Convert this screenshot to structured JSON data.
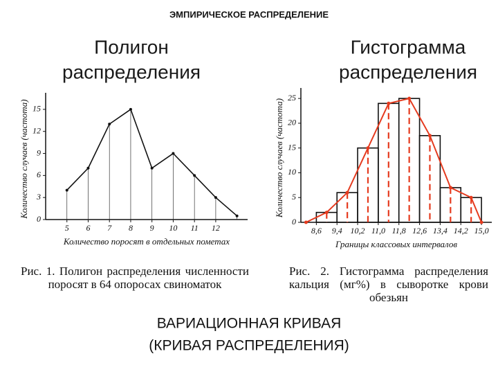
{
  "title": "ЭМПИРИЧЕСКОЕ РАСПРЕДЕЛЕНИЕ",
  "footer": [
    "ВАРИАЦИОННАЯ КРИВАЯ",
    "(КРИВАЯ РАСПРЕДЕЛЕНИЯ)"
  ],
  "chart_data": [
    {
      "type": "line",
      "heading": [
        "Полигон",
        "распределения"
      ],
      "caption": "Рис. 1. Полигон распределения численности поросят в 64 опоросах свиноматок",
      "xlabel": "Количество поросят в отдельных пометах",
      "ylabel": "Количество случаев (частота)",
      "x": [
        5,
        6,
        7,
        8,
        9,
        10,
        11,
        12,
        13
      ],
      "values": [
        4,
        7,
        13,
        15,
        7,
        9,
        6,
        3,
        0.5
      ],
      "color": "#111111",
      "xlim": [
        4,
        13.5
      ],
      "xticks": [
        5,
        6,
        7,
        8,
        9,
        10,
        11,
        12
      ],
      "ylim": [
        0,
        16.5
      ],
      "yticks": [
        0,
        3,
        6,
        9,
        12,
        15
      ]
    },
    {
      "type": "histogram",
      "heading": [
        "Гистограмма",
        "распределения"
      ],
      "caption": "Рис. 2. Гистограмма распределения кальция (мг%) в сыворотке крови обезьян",
      "xlabel": "Границы классовых интервалов",
      "ylabel": "Количество случаев (частота)",
      "bins": [
        8.6,
        9.4,
        10.2,
        11.0,
        11.8,
        12.6,
        13.4,
        14.2,
        15.0
      ],
      "values": [
        2,
        6,
        15,
        24,
        25,
        17.5,
        7,
        5
      ],
      "color": "#111111",
      "curve": {
        "color": "#e53a1e",
        "x": [
          8.2,
          9.0,
          9.8,
          10.6,
          11.4,
          12.2,
          13.0,
          13.8,
          14.6,
          15.0
        ],
        "values": [
          0,
          2,
          6,
          15,
          24,
          25,
          17.5,
          7,
          5,
          0
        ]
      },
      "xlim": [
        8.0,
        15.4
      ],
      "xticks": [
        {
          "value": 8.6,
          "label": "8,6"
        },
        {
          "value": 9.4,
          "label": "9,4"
        },
        {
          "value": 10.2,
          "label": "10,2"
        },
        {
          "value": 11.0,
          "label": "11,0"
        },
        {
          "value": 11.8,
          "label": "11,8"
        },
        {
          "value": 12.6,
          "label": "12,6"
        },
        {
          "value": 13.4,
          "label": "13,4"
        },
        {
          "value": 14.2,
          "label": "14,2"
        },
        {
          "value": 15.0,
          "label": "15,0"
        }
      ],
      "ylim": [
        0,
        26
      ],
      "yticks": [
        0,
        5,
        10,
        15,
        20,
        25
      ]
    }
  ]
}
